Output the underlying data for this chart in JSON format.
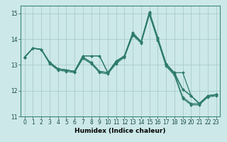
{
  "xlabel": "Humidex (Indice chaleur)",
  "bg_color": "#cce8e8",
  "grid_color": "#aacccc",
  "line_color": "#2e7b6e",
  "xlim": [
    -0.5,
    23.5
  ],
  "ylim": [
    11.0,
    15.3
  ],
  "yticks": [
    11,
    12,
    13,
    14,
    15
  ],
  "xticks": [
    0,
    1,
    2,
    3,
    4,
    5,
    6,
    7,
    8,
    9,
    10,
    11,
    12,
    13,
    14,
    15,
    16,
    17,
    18,
    19,
    20,
    21,
    22,
    23
  ],
  "lines": [
    {
      "x": [
        0,
        1,
        2,
        3,
        4,
        5,
        6,
        7,
        8,
        9,
        10,
        11,
        12,
        13,
        14,
        15,
        16,
        17,
        18,
        19,
        20,
        21,
        22,
        23
      ],
      "y": [
        13.3,
        13.65,
        13.6,
        13.1,
        12.85,
        12.8,
        12.75,
        13.35,
        13.35,
        13.35,
        12.7,
        13.15,
        13.35,
        14.25,
        13.9,
        15.05,
        14.05,
        13.05,
        12.7,
        12.7,
        11.8,
        11.5,
        11.8,
        11.85
      ]
    },
    {
      "x": [
        0,
        1,
        2,
        3,
        4,
        5,
        6,
        7,
        8,
        9,
        10,
        11,
        12,
        13,
        14,
        15,
        16,
        17,
        18,
        19,
        20,
        21,
        22,
        23
      ],
      "y": [
        13.3,
        13.65,
        13.6,
        13.1,
        12.85,
        12.8,
        12.75,
        13.35,
        13.35,
        13.35,
        12.7,
        13.15,
        13.35,
        14.25,
        13.9,
        15.05,
        14.05,
        13.05,
        12.65,
        12.05,
        11.8,
        11.5,
        11.8,
        11.85
      ]
    },
    {
      "x": [
        0,
        1,
        2,
        3,
        4,
        5,
        6,
        7,
        8,
        9,
        10,
        11,
        12,
        13,
        14,
        15,
        16,
        17,
        18,
        19,
        20,
        21,
        22,
        23
      ],
      "y": [
        13.3,
        13.65,
        13.6,
        13.1,
        12.85,
        12.8,
        12.75,
        13.3,
        13.1,
        12.75,
        12.7,
        13.1,
        13.35,
        14.2,
        13.9,
        15.0,
        14.0,
        13.0,
        12.7,
        12.05,
        11.8,
        11.5,
        11.8,
        11.85
      ]
    },
    {
      "x": [
        0,
        1,
        2,
        3,
        4,
        5,
        6,
        7,
        8,
        9,
        10,
        11,
        12,
        13,
        14,
        15,
        16,
        17,
        18,
        19,
        20,
        21,
        22,
        23
      ],
      "y": [
        13.3,
        13.65,
        13.6,
        13.1,
        12.85,
        12.8,
        12.75,
        13.3,
        13.1,
        12.75,
        12.7,
        13.1,
        13.35,
        14.2,
        13.9,
        15.0,
        14.0,
        13.0,
        12.65,
        11.75,
        11.5,
        11.5,
        11.8,
        11.85
      ]
    },
    {
      "x": [
        0,
        1,
        2,
        3,
        4,
        5,
        6,
        7,
        8,
        9,
        10,
        11,
        12,
        13,
        14,
        15,
        16,
        17,
        18,
        19,
        20,
        21,
        22,
        23
      ],
      "y": [
        13.3,
        13.65,
        13.6,
        13.05,
        12.8,
        12.75,
        12.7,
        13.25,
        13.05,
        12.7,
        12.65,
        13.05,
        13.3,
        14.15,
        13.85,
        14.95,
        13.95,
        12.95,
        12.6,
        11.7,
        11.45,
        11.45,
        11.75,
        11.8
      ]
    }
  ]
}
